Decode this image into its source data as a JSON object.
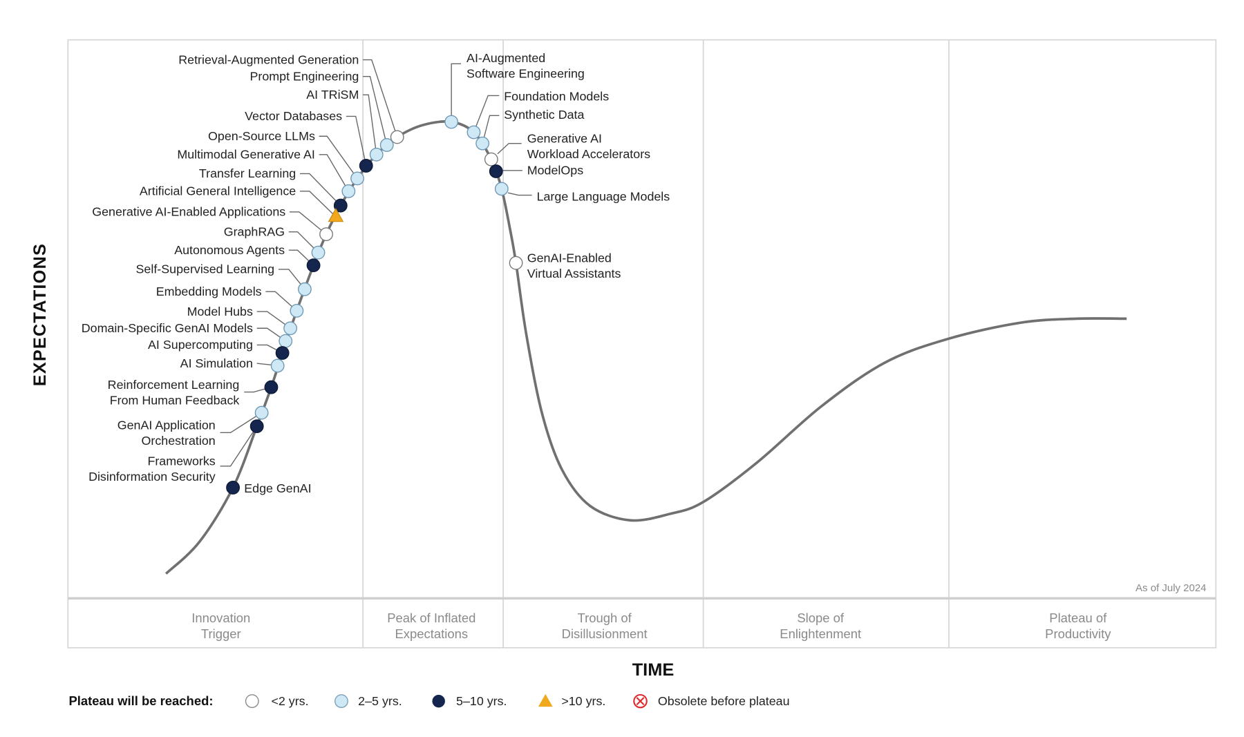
{
  "chart_data": {
    "type": "hype-cycle",
    "xlabel": "TIME",
    "ylabel": "EXPECTATIONS",
    "as_of": "As of July 2024",
    "phases": [
      "Innovation\nTrigger",
      "Peak of Inflated\nExpectations",
      "Trough of\nDisillusionment",
      "Slope of\nEnlightenment",
      "Plateau of\nProductivity"
    ],
    "legend": {
      "title": "Plateau will be reached:",
      "entries": [
        {
          "key": "lt2",
          "label": "<2 yrs."
        },
        {
          "key": "2to5",
          "label": "2–5 yrs."
        },
        {
          "key": "5to10",
          "label": "5–10 yrs."
        },
        {
          "key": "gt10",
          "label": ">10 yrs."
        },
        {
          "key": "obsolete",
          "label": "Obsolete before plateau"
        }
      ]
    },
    "colors": {
      "lt2": "#ffffff",
      "2to5": "#cfe8f6",
      "5to10": "#14264d",
      "gt10": "#f2a81d",
      "obsolete": "#e0262b",
      "curve": "#707070"
    },
    "items": [
      {
        "name": "Retrieval-Augmented Generation",
        "plateau": "lt2",
        "phase": "Peak of Inflated Expectations"
      },
      {
        "name": "Prompt Engineering",
        "plateau": "2to5",
        "phase": "Peak of Inflated Expectations"
      },
      {
        "name": "AI TRiSM",
        "plateau": "2to5",
        "phase": "Peak of Inflated Expectations"
      },
      {
        "name": "Vector Databases",
        "plateau": "5to10",
        "phase": "Peak of Inflated Expectations"
      },
      {
        "name": "Open-Source LLMs",
        "plateau": "2to5",
        "phase": "Innovation Trigger"
      },
      {
        "name": "Multimodal Generative AI",
        "plateau": "2to5",
        "phase": "Innovation Trigger"
      },
      {
        "name": "Transfer Learning",
        "plateau": "5to10",
        "phase": "Innovation Trigger"
      },
      {
        "name": "Artificial General Intelligence",
        "plateau": "gt10",
        "phase": "Innovation Trigger"
      },
      {
        "name": "Generative AI-Enabled Applications",
        "plateau": "lt2",
        "phase": "Innovation Trigger"
      },
      {
        "name": "GraphRAG",
        "plateau": "2to5",
        "phase": "Innovation Trigger"
      },
      {
        "name": "Autonomous Agents",
        "plateau": "5to10",
        "phase": "Innovation Trigger"
      },
      {
        "name": "Self-Supervised Learning",
        "plateau": "2to5",
        "phase": "Innovation Trigger"
      },
      {
        "name": "Embedding Models",
        "plateau": "2to5",
        "phase": "Innovation Trigger"
      },
      {
        "name": "Model Hubs",
        "plateau": "2to5",
        "phase": "Innovation Trigger"
      },
      {
        "name": "Domain-Specific GenAI Models",
        "plateau": "2to5",
        "phase": "Innovation Trigger"
      },
      {
        "name": "AI Supercomputing",
        "plateau": "5to10",
        "phase": "Innovation Trigger"
      },
      {
        "name": "AI Simulation",
        "plateau": "2to5",
        "phase": "Innovation Trigger"
      },
      {
        "name": "Reinforcement Learning\nFrom Human Feedback",
        "plateau": "5to10",
        "phase": "Innovation Trigger"
      },
      {
        "name": "GenAI Application\nOrchestration",
        "plateau": "2to5",
        "phase": "Innovation Trigger"
      },
      {
        "name": "Frameworks\nDisinformation Security",
        "plateau": "5to10",
        "phase": "Innovation Trigger"
      },
      {
        "name": "Edge GenAI",
        "plateau": "5to10",
        "phase": "Innovation Trigger"
      },
      {
        "name": "AI-Augmented\nSoftware Engineering",
        "plateau": "2to5",
        "phase": "Peak of Inflated Expectations"
      },
      {
        "name": "Foundation Models",
        "plateau": "2to5",
        "phase": "Peak of Inflated Expectations"
      },
      {
        "name": "Synthetic Data",
        "plateau": "2to5",
        "phase": "Peak of Inflated Expectations"
      },
      {
        "name": "Generative AI\nWorkload Accelerators",
        "plateau": "lt2",
        "phase": "Peak of Inflated Expectations"
      },
      {
        "name": "ModelOps",
        "plateau": "5to10",
        "phase": "Peak of Inflated Expectations"
      },
      {
        "name": "Large Language Models",
        "plateau": "2to5",
        "phase": "Trough of Disillusionment"
      },
      {
        "name": "GenAI-Enabled\nVirtual Assistants",
        "plateau": "lt2",
        "phase": "Trough of Disillusionment"
      }
    ]
  }
}
